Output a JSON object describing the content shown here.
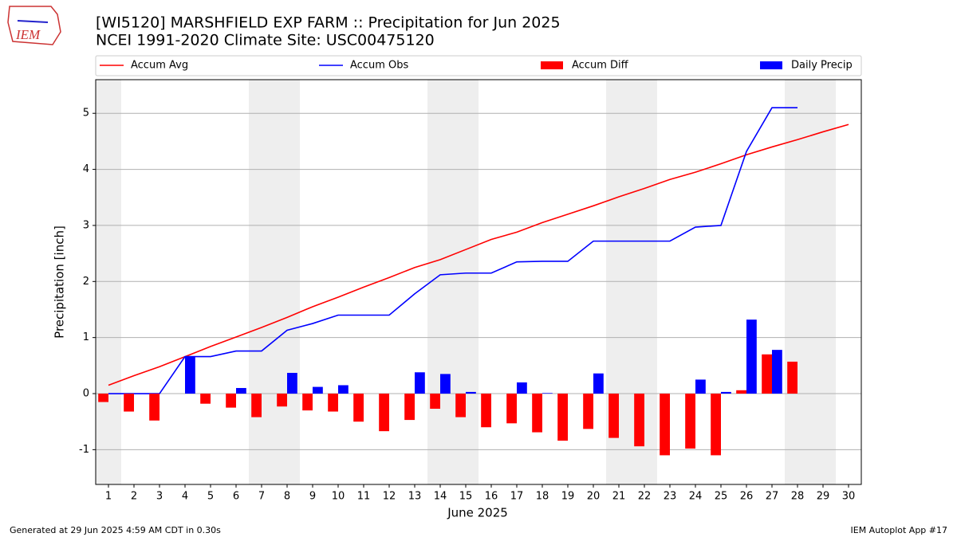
{
  "chart_data": {
    "type": "precip_accum",
    "logo_text": "IEM",
    "title": "[WI5120] MARSHFIELD EXP FARM :: Precipitation for Jun 2025",
    "subtitle": "NCEI 1991-2020 Climate Site: USC00475120",
    "x_label": "June 2025",
    "y_label": "Precipitation [inch]",
    "footer_left": "Generated at 29 Jun 2025 4:59 AM CDT in 0.30s",
    "footer_right": "IEM Autoplot App #17",
    "x": [
      1,
      2,
      3,
      4,
      5,
      6,
      7,
      8,
      9,
      10,
      11,
      12,
      13,
      14,
      15,
      16,
      17,
      18,
      19,
      20,
      21,
      22,
      23,
      24,
      25,
      26,
      27,
      28,
      29,
      30
    ],
    "xlim": [
      0.5,
      30.5
    ],
    "xticks": [
      1,
      2,
      3,
      4,
      5,
      6,
      7,
      8,
      9,
      10,
      11,
      12,
      13,
      14,
      15,
      16,
      17,
      18,
      19,
      20,
      21,
      22,
      23,
      24,
      25,
      26,
      27,
      28,
      29,
      30
    ],
    "ylim": [
      -1.62,
      5.6
    ],
    "yticks": [
      -1,
      0,
      1,
      2,
      3,
      4,
      5
    ],
    "grid": true,
    "shaded_spans": [
      [
        0.5,
        1.5
      ],
      [
        6.5,
        8.5
      ],
      [
        13.5,
        15.5
      ],
      [
        20.5,
        22.5
      ],
      [
        27.5,
        29.5
      ]
    ],
    "series": [
      {
        "name": "Accum Avg",
        "kind": "line",
        "color": "#ff0000",
        "values": [
          0.15,
          0.32,
          0.48,
          0.66,
          0.84,
          1.01,
          1.18,
          1.36,
          1.55,
          1.72,
          1.9,
          2.07,
          2.25,
          2.39,
          2.57,
          2.75,
          2.88,
          3.05,
          3.2,
          3.35,
          3.51,
          3.66,
          3.82,
          3.95,
          4.1,
          4.26,
          4.4,
          4.53,
          4.67,
          4.8
        ]
      },
      {
        "name": "Accum Obs",
        "kind": "line",
        "color": "#0000ff",
        "values": [
          0,
          0,
          0,
          0.66,
          0.66,
          0.76,
          0.76,
          1.13,
          1.25,
          1.4,
          1.4,
          1.4,
          1.78,
          2.12,
          2.15,
          2.15,
          2.35,
          2.36,
          2.36,
          2.72,
          2.72,
          2.72,
          2.72,
          2.97,
          3.0,
          4.32,
          5.1,
          5.1,
          null,
          null
        ]
      },
      {
        "name": "Accum Diff",
        "kind": "bar",
        "color": "#ff0000",
        "values": [
          -0.15,
          -0.32,
          -0.48,
          0,
          -0.18,
          -0.25,
          -0.42,
          -0.23,
          -0.3,
          -0.32,
          -0.5,
          -0.67,
          -0.47,
          -0.27,
          -0.42,
          -0.6,
          -0.53,
          -0.69,
          -0.84,
          -0.63,
          -0.79,
          -0.94,
          -1.1,
          -0.98,
          -1.1,
          0.06,
          0.7,
          0.57,
          null,
          null
        ]
      },
      {
        "name": "Daily Precip",
        "kind": "bar",
        "color": "#0000ff",
        "values": [
          0,
          0,
          0,
          0.66,
          0,
          0.1,
          0,
          0.37,
          0.12,
          0.15,
          0,
          0,
          0.38,
          0.35,
          0.03,
          0,
          0.2,
          0.01,
          0,
          0.36,
          0,
          0,
          0,
          0.25,
          0.03,
          1.32,
          0.78,
          0,
          null,
          null
        ]
      }
    ]
  }
}
